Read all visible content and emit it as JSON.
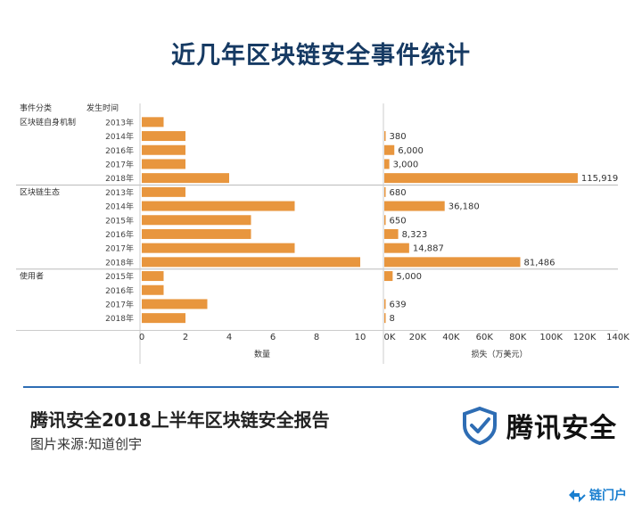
{
  "title": "近几年区块链安全事件统计",
  "headers": {
    "category": "事件分类",
    "year": "发生时间"
  },
  "chart_data": {
    "type": "bar",
    "orientation": "horizontal",
    "groups": [
      {
        "name": "区块链自身机制",
        "rows": [
          {
            "year": "2013年",
            "count": 1,
            "loss": null,
            "loss_label": ""
          },
          {
            "year": "2014年",
            "count": 2,
            "loss": 380,
            "loss_label": "380"
          },
          {
            "year": "2016年",
            "count": 2,
            "loss": 6000,
            "loss_label": "6,000"
          },
          {
            "year": "2017年",
            "count": 2,
            "loss": 3000,
            "loss_label": "3,000"
          },
          {
            "year": "2018年",
            "count": 4,
            "loss": 115919,
            "loss_label": "115,919"
          }
        ]
      },
      {
        "name": "区块链生态",
        "rows": [
          {
            "year": "2013年",
            "count": 2,
            "loss": 680,
            "loss_label": "680"
          },
          {
            "year": "2014年",
            "count": 7,
            "loss": 36180,
            "loss_label": "36,180"
          },
          {
            "year": "2015年",
            "count": 5,
            "loss": 650,
            "loss_label": "650"
          },
          {
            "year": "2016年",
            "count": 5,
            "loss": 8323,
            "loss_label": "8,323"
          },
          {
            "year": "2017年",
            "count": 7,
            "loss": 14887,
            "loss_label": "14,887"
          },
          {
            "year": "2018年",
            "count": 10,
            "loss": 81486,
            "loss_label": "81,486"
          }
        ]
      },
      {
        "name": "使用者",
        "rows": [
          {
            "year": "2015年",
            "count": 1,
            "loss": 5000,
            "loss_label": "5,000"
          },
          {
            "year": "2016年",
            "count": 1,
            "loss": null,
            "loss_label": ""
          },
          {
            "year": "2017年",
            "count": 3,
            "loss": 639,
            "loss_label": "639"
          },
          {
            "year": "2018年",
            "count": 2,
            "loss": 8,
            "loss_label": "8"
          }
        ]
      }
    ],
    "count_axis": {
      "label": "数量",
      "ticks": [
        "0",
        "2",
        "4",
        "6",
        "8",
        "10"
      ],
      "range": [
        0,
        11
      ]
    },
    "loss_axis": {
      "label": "损失（万美元）",
      "ticks": [
        "0K",
        "20K",
        "40K",
        "60K",
        "80K",
        "100K",
        "120K",
        "140K"
      ],
      "range": [
        0,
        140000
      ]
    },
    "bar_color": "#e8963e"
  },
  "footer": {
    "report": "腾讯安全2018上半年区块链安全报告",
    "source": "图片来源:知道创宇",
    "brand": "腾讯安全"
  },
  "watermark": "链门户",
  "colors": {
    "title": "#163a63",
    "divider": "#2e6db4",
    "brand": "#2e6db4",
    "watermark": "#1a7fd0"
  }
}
